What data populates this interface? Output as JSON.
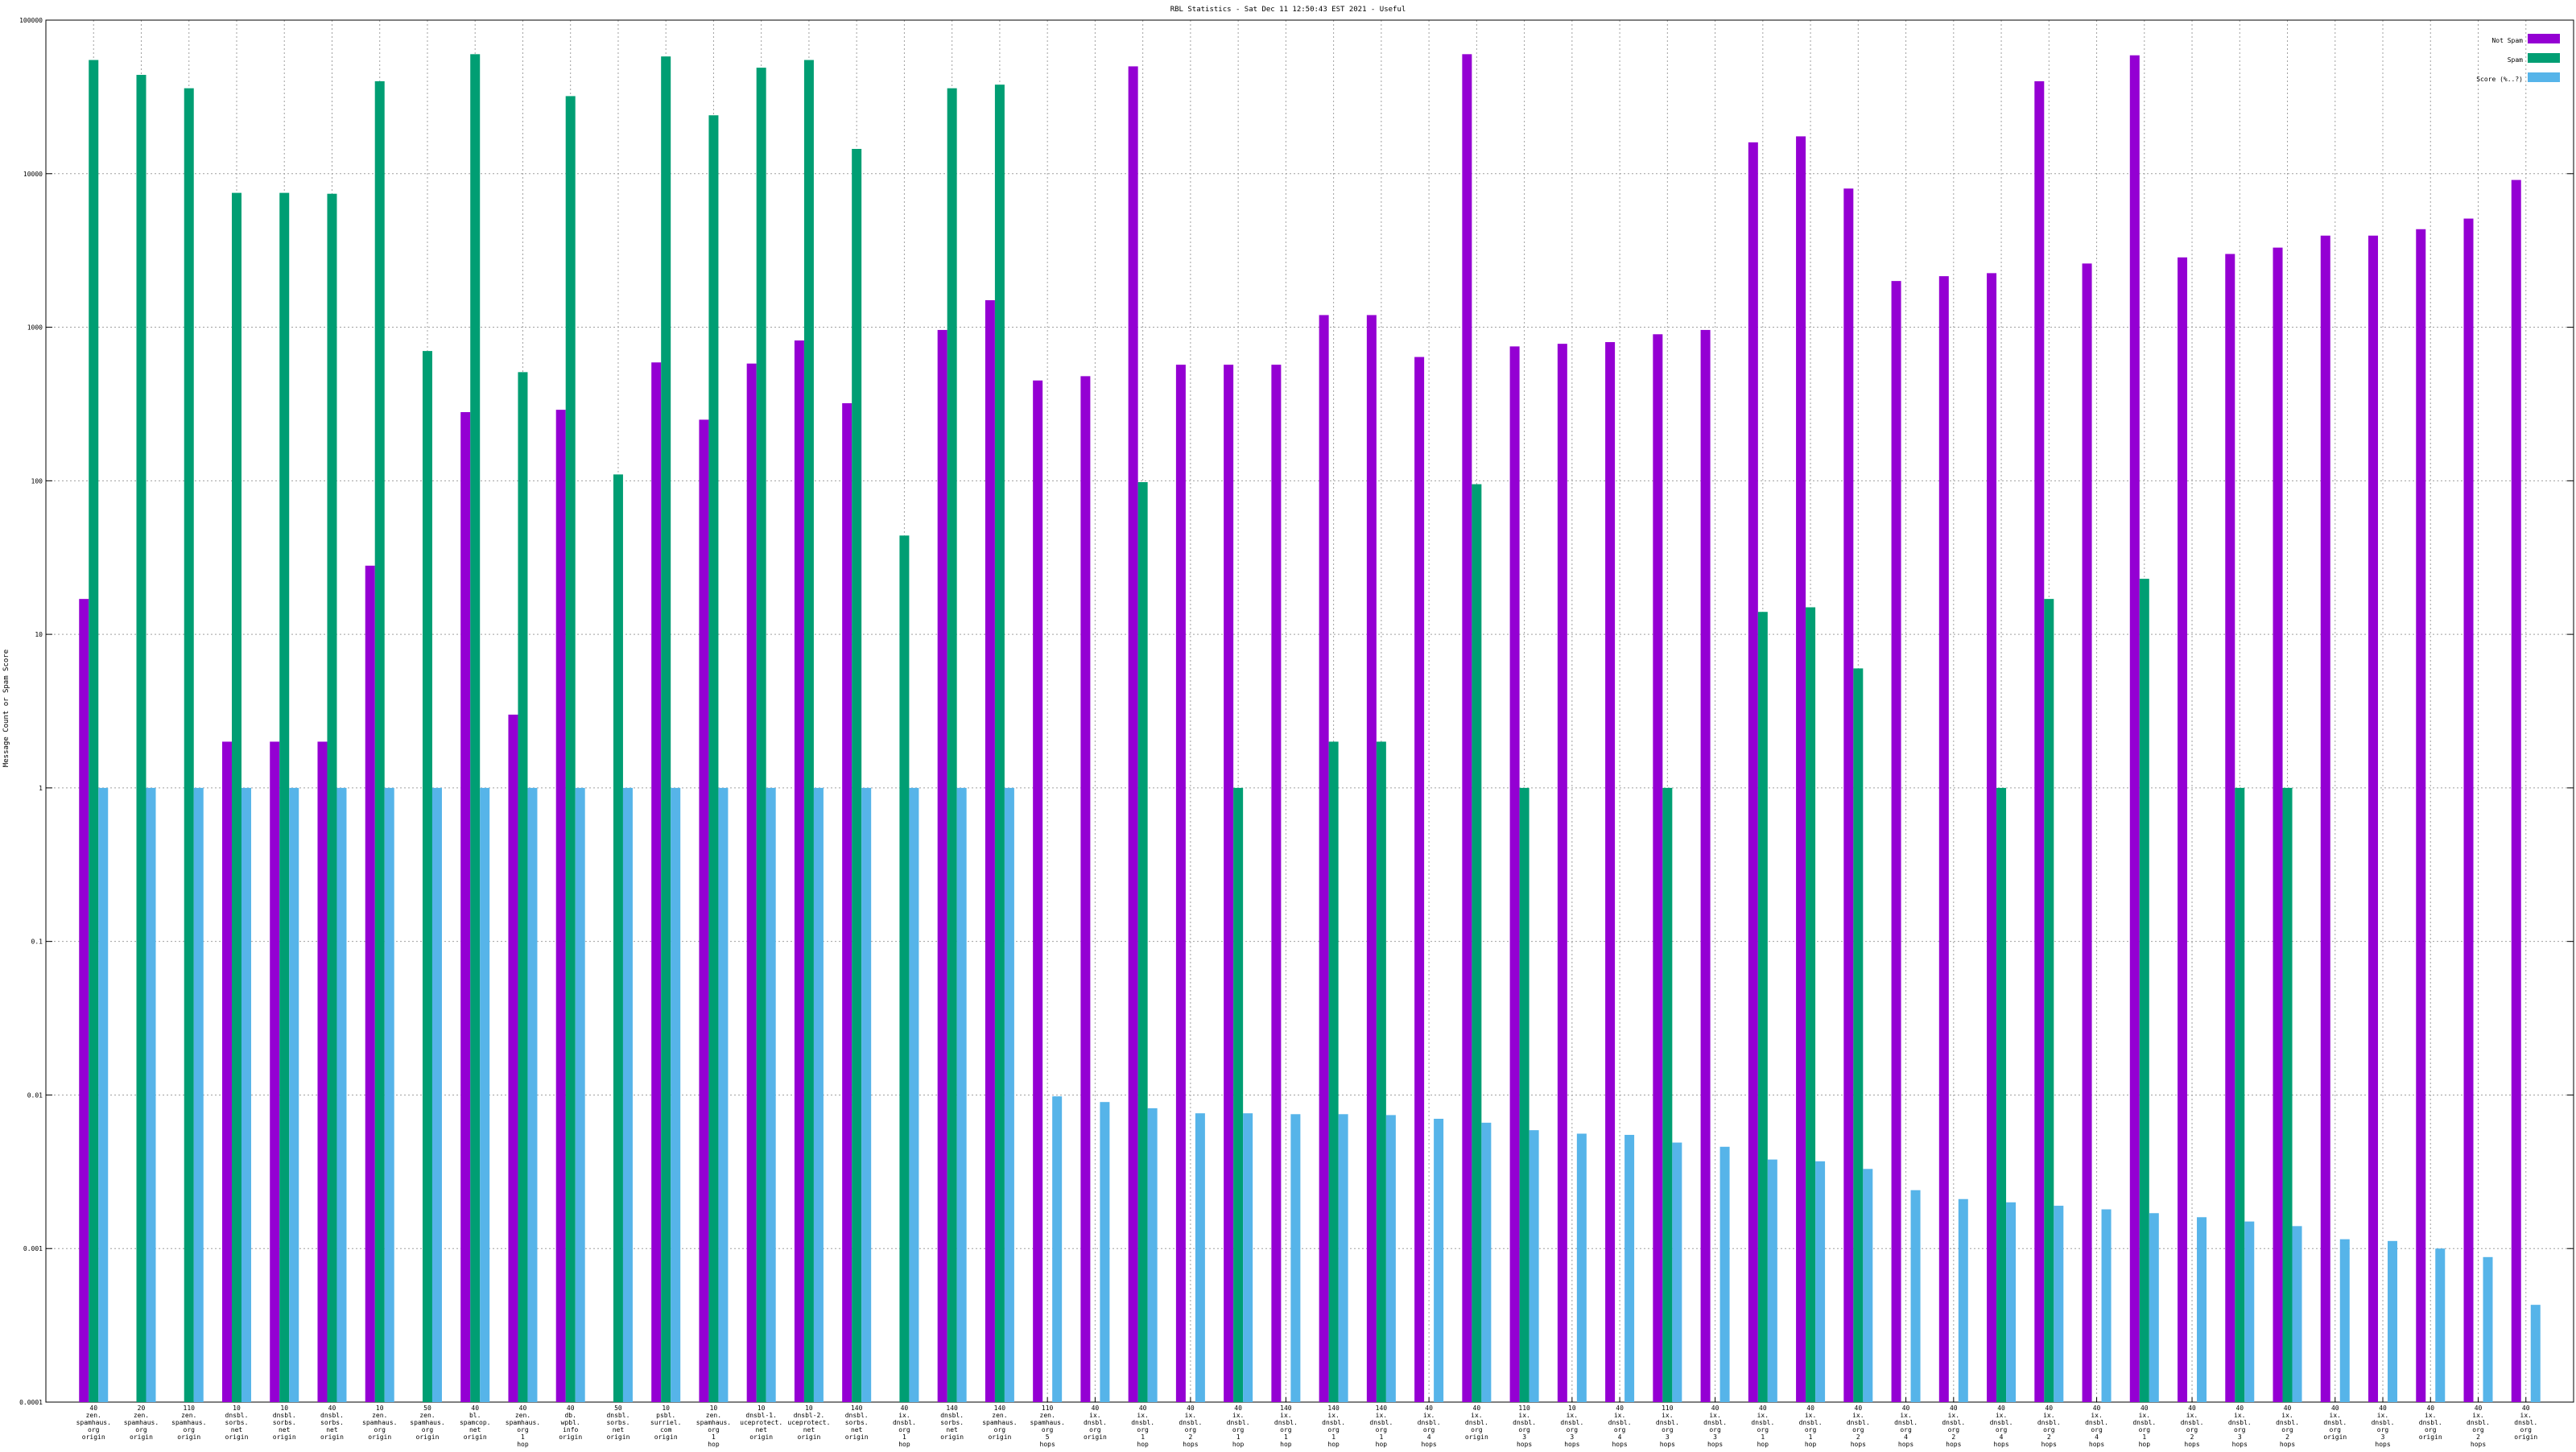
{
  "chart_data": {
    "type": "bar",
    "title": "RBL Statistics - Sat Dec 11 12:50:43 EST 2021 - Useful",
    "xlabel": "",
    "ylabel": "Message Count or Spam Score",
    "yscale": "log",
    "ylim": [
      0.0001,
      100000
    ],
    "yticks": [
      "0.0001",
      "0.001",
      "0.01",
      "0.1",
      "1",
      "10",
      "100",
      "1000",
      "10000",
      "100000"
    ],
    "grid": true,
    "legend_position": "top-right",
    "categories": [
      "40 zen. spamhaus. org origin",
      "20 zen. spamhaus. org origin",
      "110 zen. spamhaus. org origin",
      "10 dnsbl. sorbs. net origin",
      "10 dnsbl. sorbs. net origin",
      "40 dnsbl. sorbs. net origin",
      "10 zen. spamhaus. org origin",
      "50 zen. spamhaus. org origin",
      "40 bl. spamcop. net origin",
      "40 zen. spamhaus. org 1 hop",
      "40 db. wpbl. info origin",
      "50 dnsbl. sorbs. net origin",
      "10 psbl. surriel. com origin",
      "10 zen. spamhaus. org 1 hop",
      "10 dnsbl-1. uceprotect. net origin",
      "10 dnsbl-2. uceprotect. net origin",
      "140 dnsbl. sorbs. net origin",
      "40 ix. dnsbl. org 1 hop",
      "140 dnsbl. sorbs. net origin",
      "140 zen. spamhaus. org origin",
      "110 zen. spamhaus. org 5 hops",
      "40 ix. dnsbl. org origin",
      "40 ix. dnsbl. org 1 hop",
      "40 ix. dnsbl. org 2 hops",
      "40 ix. dnsbl. org 1 hop",
      "140 ix. dnsbl. org 1 hop",
      "140 ix. dnsbl. org 1 hop",
      "140 ix. dnsbl. org 1 hop",
      "40 ix. dnsbl. org 4 hops",
      "40 ix. dnsbl. org origin",
      "110 ix. dnsbl. org 3 hops",
      "10 ix. dnsbl. org 3 hops",
      "40 ix. dnsbl. org 4 hops",
      "110 ix. dnsbl. org 3 hops",
      "40 ix. dnsbl. org 3 hops",
      "40 ix. dnsbl. org 1 hop",
      "40 ix. dnsbl. org 1 hop",
      "40 ix. dnsbl. org 2 hops",
      "40 ix. dnsbl. org 4 hops",
      "40 ix. dnsbl. org 2 hops",
      "40 ix. dnsbl. org 4 hops",
      "40 ix. dnsbl. org 2 hops",
      "40 ix. dnsbl. org 4 hops",
      "40 ix. dnsbl. org 1 hop",
      "40 ix. dnsbl. org 2 hops",
      "40 ix. dnsbl. org 3 hops",
      "40 ix. dnsbl. org 2 hops",
      "40 ix. dnsbl. org origin",
      "40 ix. dnsbl. org 3 hops",
      "40 ix. dnsbl. org origin",
      "40 ix. dnsbl. org 2 hops",
      "40 ix. dnsbl. org origin"
    ],
    "series": [
      {
        "name": "Not Spam",
        "color": "#9400d3",
        "values": [
          17,
          null,
          null,
          2,
          2,
          2,
          28,
          null,
          280,
          3,
          290,
          null,
          590,
          250,
          580,
          820,
          320,
          null,
          960,
          1500,
          450,
          480,
          50000,
          570,
          570,
          570,
          1200,
          1200,
          640,
          60000,
          750,
          780,
          800,
          900,
          960,
          16000,
          17500,
          8000,
          2000,
          2150,
          2250,
          40000,
          2600,
          59000,
          2850,
          3000,
          3300,
          3950,
          3950,
          4350,
          5100,
          9100
        ]
      },
      {
        "name": "Spam",
        "color": "#009e73",
        "values": [
          55000,
          44000,
          36000,
          7500,
          7500,
          7400,
          40000,
          700,
          60000,
          510,
          32000,
          110,
          58000,
          24000,
          49000,
          55000,
          14500,
          44,
          36000,
          38000,
          null,
          null,
          98,
          null,
          1,
          null,
          2,
          2,
          null,
          95,
          1,
          null,
          null,
          1,
          null,
          14,
          15,
          6,
          null,
          null,
          1,
          17,
          null,
          23,
          null,
          1,
          1,
          null,
          null,
          null,
          null,
          null
        ]
      },
      {
        "name": "Score (%..?)",
        "color": "#56b4e9",
        "values": [
          1,
          1,
          1,
          1,
          1,
          1,
          1,
          1,
          1,
          1,
          1,
          1,
          1,
          1,
          1,
          1,
          1,
          1,
          1,
          1,
          0.0098,
          0.009,
          0.0082,
          0.0076,
          0.0076,
          0.0075,
          0.0075,
          0.0074,
          0.007,
          0.0066,
          0.0059,
          0.0056,
          0.0055,
          0.0049,
          0.0046,
          0.0038,
          0.0037,
          0.0033,
          0.0024,
          0.0021,
          0.002,
          0.0019,
          0.0018,
          0.0017,
          0.0016,
          0.0015,
          0.0014,
          0.00115,
          0.00112,
          0.001,
          0.00088,
          0.00043
        ]
      }
    ]
  }
}
